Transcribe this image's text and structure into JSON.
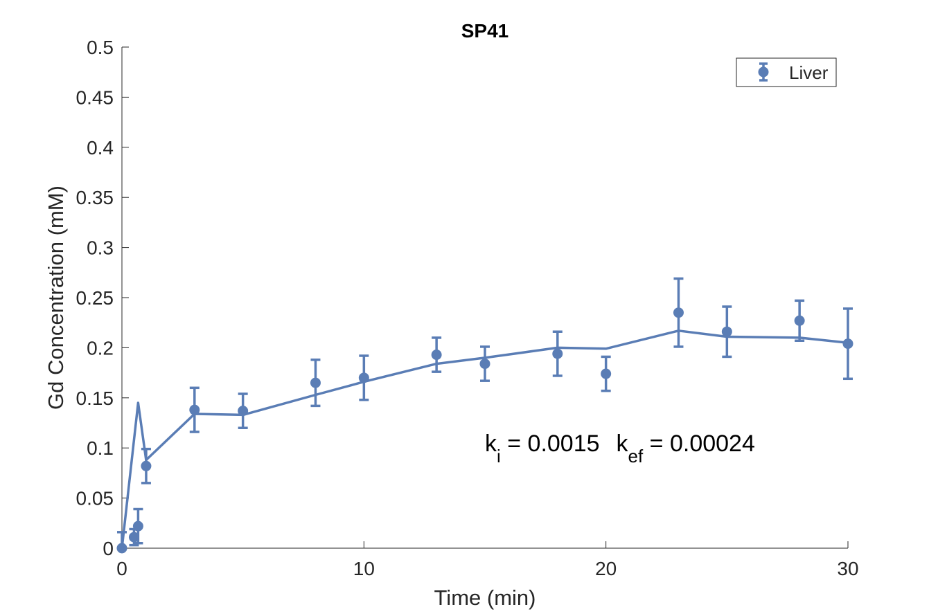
{
  "chart_data": {
    "type": "line",
    "title": "SP41",
    "xlabel": "Time (min)",
    "ylabel": "Gd Concentration (mM)",
    "xlim": [
      0,
      30
    ],
    "ylim": [
      0,
      0.5
    ],
    "x_ticks": [
      0,
      10,
      20,
      30
    ],
    "y_ticks": [
      0,
      0.05,
      0.1,
      0.15,
      0.2,
      0.25,
      0.3,
      0.35,
      0.4,
      0.45,
      0.5
    ],
    "grid": false,
    "legend_position": "top-right",
    "legend": [
      {
        "label": "Liver",
        "marker": "errorbar-circle"
      }
    ],
    "series_color": "#5A7DB5",
    "series": [
      {
        "name": "Liver",
        "kind": "errorbar",
        "x": [
          0,
          0.5,
          0.67,
          1,
          3,
          5,
          8,
          10,
          13,
          15,
          18,
          20,
          23,
          25,
          28,
          30
        ],
        "y": [
          0,
          0.011,
          0.022,
          0.082,
          0.138,
          0.137,
          0.165,
          0.17,
          0.193,
          0.184,
          0.194,
          0.174,
          0.235,
          0.216,
          0.227,
          0.204
        ],
        "err": [
          0.016,
          0.008,
          0.017,
          0.017,
          0.022,
          0.017,
          0.023,
          0.022,
          0.017,
          0.017,
          0.022,
          0.017,
          0.034,
          0.025,
          0.02,
          0.035
        ]
      },
      {
        "kind": "fit",
        "x": [
          0,
          0.67,
          1,
          3,
          5,
          8,
          10,
          13,
          15,
          18,
          20,
          23,
          25,
          28,
          30
        ],
        "y": [
          0,
          0.145,
          0.088,
          0.134,
          0.133,
          0.153,
          0.166,
          0.184,
          0.19,
          0.2,
          0.199,
          0.217,
          0.211,
          0.21,
          0.205
        ]
      }
    ],
    "annotation": {
      "k_symbol": "k",
      "ki_sub": "i",
      "ki_value": " = 0.0015",
      "kef_sub": "ef",
      "kef_value": " = 0.00024"
    }
  }
}
